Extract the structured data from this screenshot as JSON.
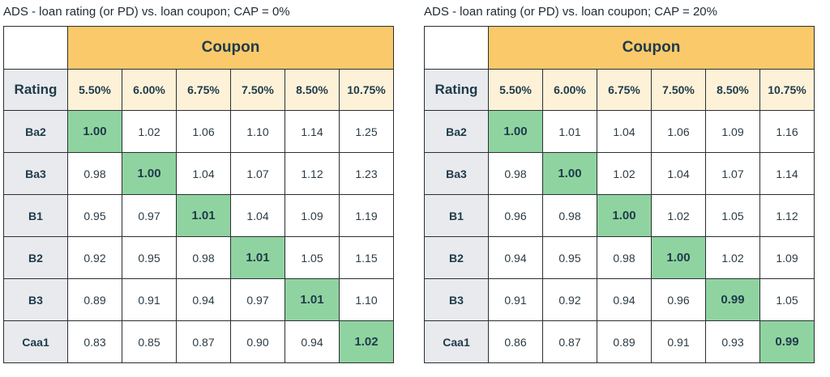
{
  "chart_data": [
    {
      "type": "table",
      "title": "ADS - loan rating (or PD) vs. loan coupon; CAP = 0%",
      "column_group_label": "Coupon",
      "row_header_label": "Rating",
      "columns": [
        "5.50%",
        "6.00%",
        "6.75%",
        "7.50%",
        "8.50%",
        "10.75%"
      ],
      "rows": [
        {
          "label": "Ba2",
          "values": [
            "1.00",
            "1.02",
            "1.06",
            "1.10",
            "1.14",
            "1.25"
          ],
          "highlight_index": 0
        },
        {
          "label": "Ba3",
          "values": [
            "0.98",
            "1.00",
            "1.04",
            "1.07",
            "1.12",
            "1.23"
          ],
          "highlight_index": 1
        },
        {
          "label": "B1",
          "values": [
            "0.95",
            "0.97",
            "1.01",
            "1.04",
            "1.09",
            "1.19"
          ],
          "highlight_index": 2
        },
        {
          "label": "B2",
          "values": [
            "0.92",
            "0.95",
            "0.98",
            "1.01",
            "1.05",
            "1.15"
          ],
          "highlight_index": 3
        },
        {
          "label": "B3",
          "values": [
            "0.89",
            "0.91",
            "0.94",
            "0.97",
            "1.01",
            "1.10"
          ],
          "highlight_index": 4
        },
        {
          "label": "Caa1",
          "values": [
            "0.83",
            "0.85",
            "0.87",
            "0.90",
            "0.94",
            "1.02"
          ],
          "highlight_index": 5
        }
      ]
    },
    {
      "type": "table",
      "title": "ADS - loan rating (or PD) vs. loan coupon; CAP = 20%",
      "column_group_label": "Coupon",
      "row_header_label": "Rating",
      "columns": [
        "5.50%",
        "6.00%",
        "6.75%",
        "7.50%",
        "8.50%",
        "10.75%"
      ],
      "rows": [
        {
          "label": "Ba2",
          "values": [
            "1.00",
            "1.01",
            "1.04",
            "1.06",
            "1.09",
            "1.16"
          ],
          "highlight_index": 0
        },
        {
          "label": "Ba3",
          "values": [
            "0.98",
            "1.00",
            "1.02",
            "1.04",
            "1.07",
            "1.14"
          ],
          "highlight_index": 1
        },
        {
          "label": "B1",
          "values": [
            "0.96",
            "0.98",
            "1.00",
            "1.02",
            "1.05",
            "1.12"
          ],
          "highlight_index": 2
        },
        {
          "label": "B2",
          "values": [
            "0.94",
            "0.95",
            "0.98",
            "1.00",
            "1.02",
            "1.09"
          ],
          "highlight_index": 3
        },
        {
          "label": "B3",
          "values": [
            "0.91",
            "0.92",
            "0.94",
            "0.96",
            "0.99",
            "1.05"
          ],
          "highlight_index": 4
        },
        {
          "label": "Caa1",
          "values": [
            "0.86",
            "0.87",
            "0.89",
            "0.91",
            "0.93",
            "0.99"
          ],
          "highlight_index": 5
        }
      ]
    }
  ],
  "colors": {
    "header_coupon": "#fac96a",
    "coupon_cells": "#fdf2d8",
    "rating_cells": "#e8eaee",
    "highlight": "#8fd4a0",
    "border": "#2b2f33"
  }
}
